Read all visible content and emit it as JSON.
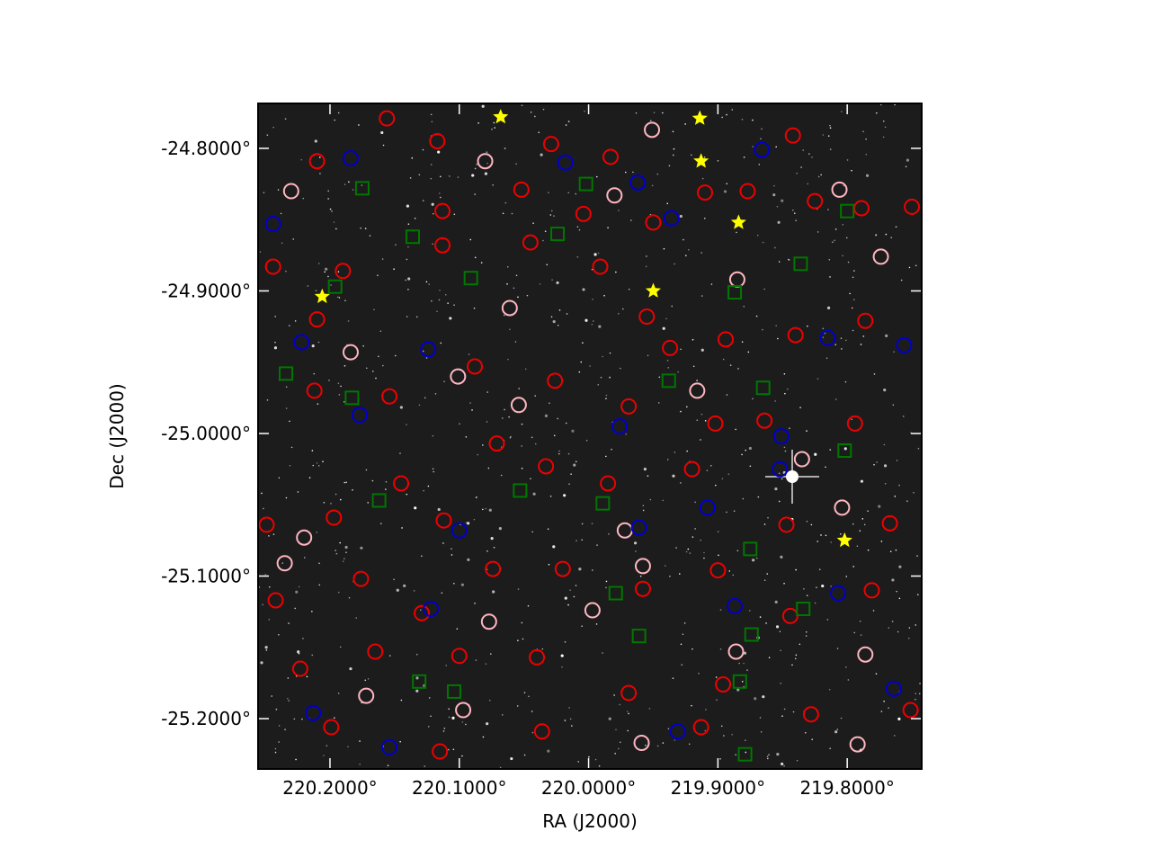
{
  "chart_data": {
    "type": "scatter",
    "xlabel": "RA (J2000)",
    "ylabel": "Dec (J2000)",
    "xlim": [
      220.2556,
      219.7424
    ],
    "ylim": [
      -25.2353,
      -24.7685
    ],
    "xticks": [
      {
        "value": 220.2,
        "label": "220.2000°"
      },
      {
        "value": 220.1,
        "label": "220.1000°"
      },
      {
        "value": 220.0,
        "label": "220.0000°"
      },
      {
        "value": 219.9,
        "label": "219.9000°"
      },
      {
        "value": 219.8,
        "label": "219.8000°"
      }
    ],
    "yticks": [
      {
        "value": -24.8,
        "label": "-24.8000°"
      },
      {
        "value": -24.9,
        "label": "-24.9000°"
      },
      {
        "value": -25.0,
        "label": "-25.0000°"
      },
      {
        "value": -25.1,
        "label": "-25.1000°"
      },
      {
        "value": -25.2,
        "label": "-25.2000°"
      }
    ],
    "series": [
      {
        "color": "#ee0000",
        "marker": "circle",
        "x": [
          220.156,
          220.117,
          220.21,
          220.113,
          220.052,
          220.029,
          220.004,
          219.983,
          219.95,
          219.91,
          219.877,
          219.842,
          219.825,
          219.789,
          219.75,
          220.244,
          220.19,
          220.21,
          220.113,
          220.045,
          219.991,
          219.955,
          219.937,
          219.894,
          219.84,
          219.786,
          220.212,
          220.154,
          220.088,
          220.026,
          219.969,
          219.902,
          219.864,
          219.794,
          220.249,
          220.197,
          220.145,
          220.112,
          220.071,
          220.033,
          219.985,
          219.92,
          219.847,
          219.767,
          220.242,
          220.176,
          220.129,
          220.074,
          220.02,
          219.958,
          219.9,
          219.844,
          219.781,
          220.223,
          220.165,
          220.1,
          220.04,
          219.969,
          219.896,
          219.828,
          220.199,
          220.115,
          220.036,
          219.913,
          219.751
        ],
        "y": [
          -24.779,
          -24.795,
          -24.809,
          -24.844,
          -24.829,
          -24.797,
          -24.846,
          -24.806,
          -24.852,
          -24.831,
          -24.83,
          -24.791,
          -24.837,
          -24.842,
          -24.841,
          -24.883,
          -24.886,
          -24.92,
          -24.868,
          -24.866,
          -24.883,
          -24.918,
          -24.94,
          -24.934,
          -24.931,
          -24.921,
          -24.97,
          -24.974,
          -24.953,
          -24.963,
          -24.981,
          -24.993,
          -24.991,
          -24.993,
          -25.064,
          -25.059,
          -25.035,
          -25.061,
          -25.007,
          -25.023,
          -25.035,
          -25.025,
          -25.064,
          -25.063,
          -25.117,
          -25.102,
          -25.126,
          -25.095,
          -25.095,
          -25.109,
          -25.096,
          -25.128,
          -25.11,
          -25.165,
          -25.153,
          -25.156,
          -25.157,
          -25.182,
          -25.176,
          -25.197,
          -25.206,
          -25.223,
          -25.209,
          -25.206,
          -25.194
        ]
      },
      {
        "color": "#ffb6c1",
        "marker": "circle",
        "x": [
          220.23,
          220.08,
          219.951,
          219.98,
          219.885,
          220.184,
          220.061,
          220.101,
          220.054,
          219.916,
          219.835,
          219.804,
          219.806,
          219.774,
          220.22,
          220.235,
          220.077,
          219.997,
          219.958,
          219.972,
          219.886,
          219.786,
          219.792,
          220.097,
          219.959,
          220.172
        ],
        "y": [
          -24.83,
          -24.809,
          -24.787,
          -24.833,
          -24.892,
          -24.943,
          -24.912,
          -24.96,
          -24.98,
          -24.97,
          -25.018,
          -25.052,
          -24.829,
          -24.876,
          -25.073,
          -25.091,
          -25.132,
          -25.124,
          -25.093,
          -25.068,
          -25.153,
          -25.155,
          -25.218,
          -25.194,
          -25.217,
          -25.184
        ]
      },
      {
        "color": "#0000cc",
        "marker": "circle",
        "x": [
          220.184,
          220.018,
          219.962,
          219.936,
          219.866,
          220.244,
          220.222,
          220.124,
          220.177,
          219.976,
          219.851,
          219.852,
          219.815,
          219.756,
          219.961,
          220.1,
          219.908,
          219.887,
          219.807,
          219.764,
          219.931,
          220.122,
          220.213,
          220.154
        ],
        "y": [
          -24.807,
          -24.81,
          -24.824,
          -24.849,
          -24.801,
          -24.853,
          -24.936,
          -24.941,
          -24.987,
          -24.995,
          -25.002,
          -25.025,
          -24.933,
          -24.938,
          -25.066,
          -25.068,
          -25.052,
          -25.121,
          -25.112,
          -25.179,
          -25.209,
          -25.123,
          -25.196,
          -25.22
        ]
      },
      {
        "color": "#007700",
        "marker": "square",
        "x": [
          220.175,
          220.136,
          220.091,
          220.196,
          220.234,
          220.183,
          220.162,
          220.053,
          219.989,
          220.002,
          220.024,
          219.938,
          219.865,
          219.836,
          219.8,
          219.802,
          219.887,
          219.875,
          219.979,
          219.961,
          219.874,
          219.834,
          219.883,
          219.879,
          220.131,
          220.104
        ],
        "y": [
          -24.828,
          -24.862,
          -24.891,
          -24.897,
          -24.958,
          -24.975,
          -25.047,
          -25.04,
          -25.049,
          -24.825,
          -24.86,
          -24.963,
          -24.968,
          -24.881,
          -24.844,
          -25.012,
          -24.901,
          -25.081,
          -25.112,
          -25.142,
          -25.141,
          -25.123,
          -25.174,
          -25.225,
          -25.174,
          -25.181
        ]
      },
      {
        "color": "#ffff00",
        "marker": "star",
        "x": [
          220.068,
          219.914,
          219.913,
          219.884,
          219.95,
          220.206,
          219.802
        ],
        "y": [
          -24.778,
          -24.779,
          -24.809,
          -24.852,
          -24.9,
          -24.904,
          -25.075
        ]
      }
    ]
  }
}
